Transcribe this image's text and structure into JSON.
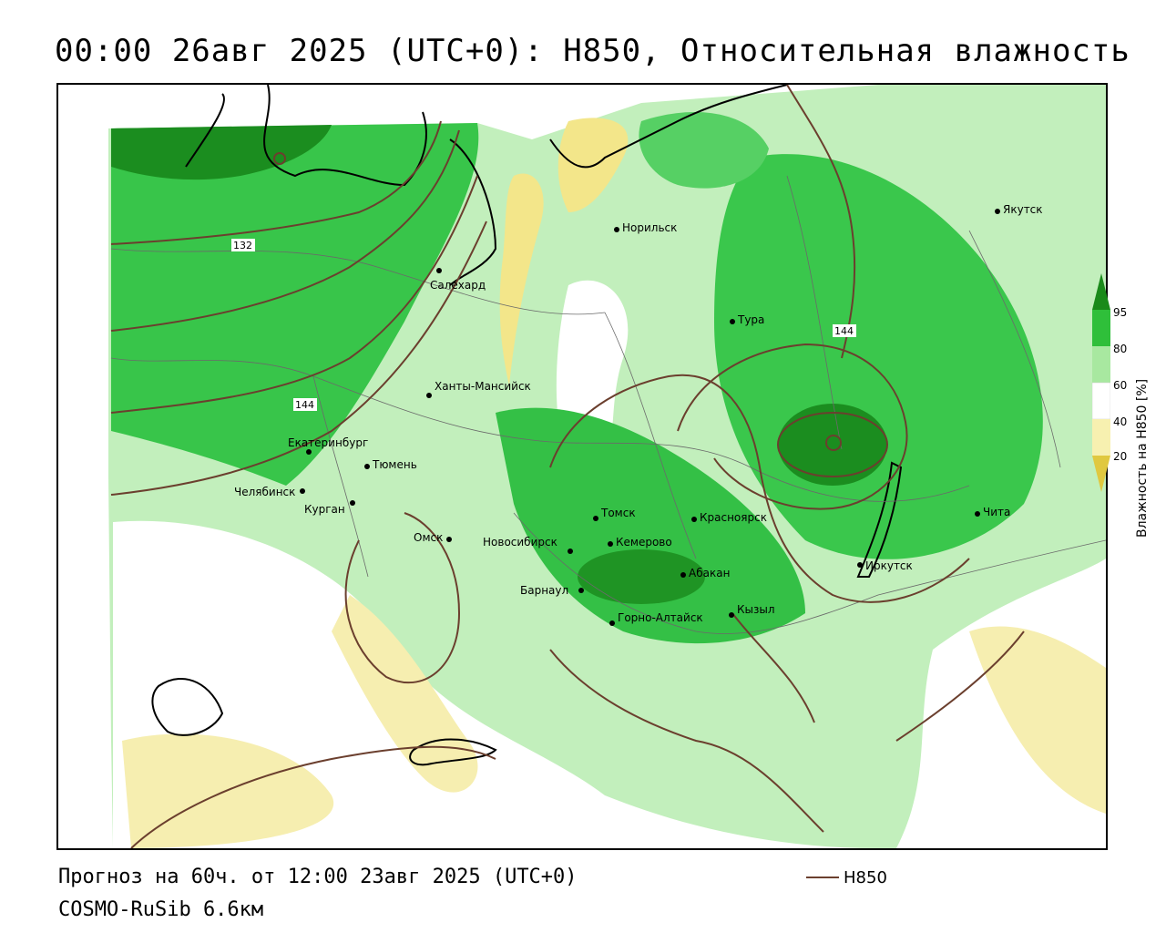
{
  "header": {
    "title": "00:00 26авг 2025 (UTC+0): H850, Относительная влажность"
  },
  "footer": {
    "forecast": "Прогноз на 60ч. от 12:00 23авг 2025 (UTC+0)",
    "model": "COSMO-RuSib 6.6км"
  },
  "legend": {
    "line_label": "H850",
    "line_color": "#6b3f2e"
  },
  "colorbar": {
    "title": "Влажность на H850 [%]",
    "ticks": [
      "95",
      "80",
      "60",
      "40",
      "20"
    ],
    "colors": {
      "c95": "#1a8a1a",
      "c80": "#2fbf3a",
      "c60": "#a8e8a0",
      "c40": "#ffffff",
      "c20": "#f7f0b0",
      "c0": "#e0c840"
    }
  },
  "contours": {
    "labels": [
      "132",
      "144",
      "144"
    ]
  },
  "cities": [
    {
      "name": "Якутск"
    },
    {
      "name": "Норильск"
    },
    {
      "name": "Салехард"
    },
    {
      "name": "Тура"
    },
    {
      "name": "Ханты-Мансийск"
    },
    {
      "name": "Екатеринбург"
    },
    {
      "name": "Тюмень"
    },
    {
      "name": "Челябинск"
    },
    {
      "name": "Курган"
    },
    {
      "name": "Омск"
    },
    {
      "name": "Томск"
    },
    {
      "name": "Красноярск"
    },
    {
      "name": "Новосибирск"
    },
    {
      "name": "Кемерово"
    },
    {
      "name": "Абакан"
    },
    {
      "name": "Барнаул"
    },
    {
      "name": "Горно-Алтайск"
    },
    {
      "name": "Кызыл"
    },
    {
      "name": "Иркутск"
    },
    {
      "name": "Чита"
    }
  ]
}
